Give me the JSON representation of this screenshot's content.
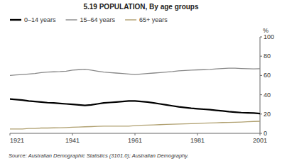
{
  "chart_data": {
    "type": "line",
    "title": "5.19   POPULATION, By age groups",
    "ylabel": "%",
    "source": "Source: Australian Demographic Statistics (3101.0); Australian Demography.",
    "x": [
      1921,
      1923,
      1925,
      1927,
      1929,
      1931,
      1933,
      1935,
      1937,
      1939,
      1941,
      1943,
      1945,
      1947,
      1949,
      1951,
      1953,
      1955,
      1957,
      1959,
      1961,
      1963,
      1965,
      1967,
      1969,
      1971,
      1973,
      1975,
      1977,
      1979,
      1981,
      1983,
      1985,
      1987,
      1989,
      1991,
      1993,
      1995,
      1997,
      1999,
      2001
    ],
    "series": [
      {
        "name": "0–14 years",
        "color": "#000000",
        "values": [
          35.5,
          35.0,
          34.5,
          33.5,
          33.0,
          32.5,
          31.8,
          31.5,
          31.0,
          30.5,
          30.0,
          29.5,
          29.0,
          29.5,
          30.5,
          31.5,
          32.0,
          32.5,
          33.0,
          33.5,
          33.5,
          33.0,
          32.5,
          31.5,
          30.5,
          29.5,
          28.5,
          27.5,
          26.8,
          26.0,
          25.5,
          25.0,
          24.5,
          23.8,
          23.2,
          22.5,
          22.0,
          21.5,
          21.2,
          21.0,
          20.5
        ]
      },
      {
        "name": "15–64 years",
        "color": "#888888",
        "values": [
          60.0,
          60.5,
          61.0,
          61.5,
          62.0,
          63.0,
          63.5,
          63.8,
          64.0,
          64.5,
          65.5,
          66.0,
          66.5,
          65.5,
          64.5,
          63.5,
          63.0,
          62.5,
          62.0,
          61.5,
          61.0,
          61.5,
          62.0,
          62.5,
          63.0,
          63.5,
          64.0,
          64.8,
          65.2,
          65.5,
          65.8,
          66.0,
          66.3,
          66.8,
          67.2,
          67.5,
          67.5,
          67.2,
          67.0,
          66.8,
          67.0
        ]
      },
      {
        "name": "65+ years",
        "color": "#b0a070",
        "values": [
          4.5,
          4.5,
          4.5,
          5.0,
          5.0,
          5.5,
          5.5,
          5.7,
          5.8,
          6.0,
          6.3,
          6.5,
          6.8,
          7.0,
          7.2,
          7.5,
          7.5,
          7.5,
          7.5,
          7.5,
          8.0,
          8.3,
          8.5,
          8.8,
          9.0,
          9.3,
          9.5,
          9.7,
          9.8,
          10.0,
          10.2,
          10.5,
          10.8,
          11.0,
          11.2,
          11.3,
          11.5,
          11.7,
          12.0,
          12.3,
          12.5
        ]
      }
    ],
    "xlim": [
      1921,
      2001
    ],
    "ylim": [
      0,
      100
    ],
    "xticks": [
      1921,
      1941,
      1961,
      1981,
      2001
    ],
    "yticks": [
      0,
      20,
      40,
      60,
      80,
      100
    ],
    "grid": false,
    "legend": "upper left"
  }
}
